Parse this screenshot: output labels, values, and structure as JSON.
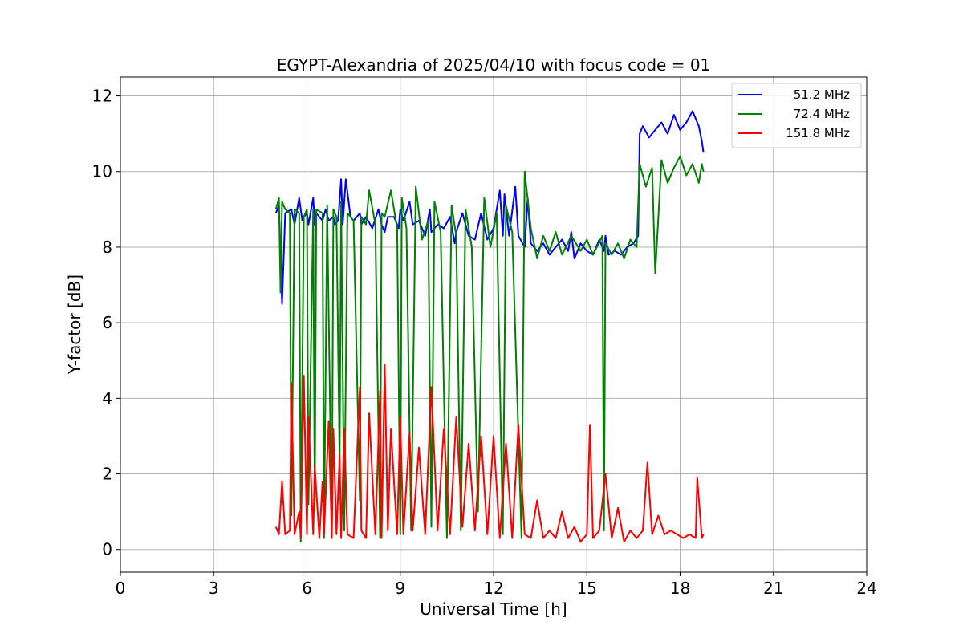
{
  "chart_data": {
    "type": "line",
    "title": "EGYPT-Alexandria of 2025/04/10 with focus code = 01",
    "xlabel": "Universal Time [h]",
    "ylabel": "Y-factor [dB]",
    "xlim": [
      0,
      24
    ],
    "ylim": [
      -0.6,
      12.5
    ],
    "xticks": [
      0,
      3,
      6,
      9,
      12,
      15,
      18,
      21,
      24
    ],
    "yticks": [
      0,
      2,
      4,
      6,
      8,
      10,
      12
    ],
    "grid": true,
    "legend_position": "top-right",
    "series": [
      {
        "name": "51.2 MHz",
        "color": "#0000ff",
        "x": [
          5.0,
          5.1,
          5.2,
          5.3,
          5.5,
          5.6,
          5.75,
          5.85,
          5.9,
          6.0,
          6.05,
          6.2,
          6.25,
          6.3,
          6.5,
          6.6,
          6.7,
          6.85,
          6.9,
          7.0,
          7.1,
          7.15,
          7.25,
          7.4,
          7.5,
          7.7,
          7.75,
          7.9,
          8.1,
          8.3,
          8.4,
          8.5,
          8.6,
          8.8,
          8.95,
          9.0,
          9.1,
          9.3,
          9.4,
          9.6,
          9.8,
          9.95,
          10.0,
          10.2,
          10.4,
          10.6,
          10.75,
          10.8,
          11.0,
          11.2,
          11.4,
          11.6,
          11.8,
          12.0,
          12.2,
          12.3,
          12.35,
          12.5,
          12.7,
          12.8,
          13.0,
          13.1,
          13.2,
          13.3,
          13.4,
          13.6,
          13.8,
          14.0,
          14.2,
          14.4,
          14.5,
          14.6,
          14.8,
          15.0,
          15.2,
          15.4,
          15.55,
          15.6,
          15.7,
          15.9,
          16.1,
          16.3,
          16.5,
          16.65,
          16.7,
          16.8,
          17.0,
          17.2,
          17.4,
          17.6,
          17.8,
          18.0,
          18.2,
          18.4,
          18.6,
          18.7,
          18.75
        ],
        "values": [
          8.9,
          9.1,
          6.5,
          8.9,
          9.0,
          8.6,
          9.3,
          8.7,
          8.8,
          8.9,
          8.6,
          9.3,
          8.6,
          8.9,
          8.7,
          9.0,
          8.7,
          8.8,
          8.6,
          8.7,
          9.8,
          8.6,
          9.8,
          8.8,
          8.7,
          8.9,
          8.6,
          8.8,
          8.5,
          9.0,
          8.6,
          8.4,
          8.8,
          8.8,
          8.5,
          9.0,
          8.7,
          9.2,
          8.6,
          8.7,
          8.3,
          9.0,
          8.4,
          8.6,
          8.5,
          8.8,
          8.1,
          8.4,
          8.9,
          8.3,
          8.2,
          8.9,
          8.2,
          8.5,
          9.5,
          8.3,
          9.4,
          8.3,
          9.6,
          8.3,
          8.0,
          9.3,
          8.1,
          8.0,
          7.9,
          8.1,
          7.8,
          8.0,
          8.2,
          7.9,
          8.4,
          7.7,
          8.1,
          7.9,
          7.8,
          8.2,
          7.9,
          8.3,
          7.8,
          7.9,
          7.8,
          8.0,
          8.1,
          8.3,
          11.0,
          11.2,
          10.9,
          11.1,
          11.3,
          11.0,
          11.5,
          11.1,
          11.3,
          11.6,
          11.2,
          10.8,
          10.5
        ]
      },
      {
        "name": "72.4 MHz",
        "color": "#008000",
        "x": [
          5.0,
          5.1,
          5.15,
          5.2,
          5.3,
          5.45,
          5.5,
          5.6,
          5.75,
          5.8,
          5.9,
          6.0,
          6.05,
          6.2,
          6.25,
          6.3,
          6.5,
          6.55,
          6.65,
          6.8,
          6.85,
          6.95,
          7.05,
          7.1,
          7.2,
          7.3,
          7.5,
          7.7,
          7.75,
          7.9,
          8.0,
          8.2,
          8.35,
          8.4,
          8.5,
          8.7,
          8.9,
          9.0,
          9.05,
          9.2,
          9.35,
          9.5,
          9.7,
          9.9,
          10.0,
          10.1,
          10.3,
          10.5,
          10.65,
          10.8,
          10.95,
          11.1,
          11.3,
          11.5,
          11.7,
          11.9,
          12.1,
          12.3,
          12.4,
          12.6,
          12.9,
          13.0,
          13.2,
          13.4,
          13.6,
          13.8,
          14.0,
          14.2,
          14.5,
          14.8,
          15.0,
          15.2,
          15.5,
          15.55,
          15.6,
          15.8,
          16.0,
          16.2,
          16.4,
          16.6,
          16.7,
          16.9,
          17.1,
          17.2,
          17.4,
          17.6,
          17.8,
          18.0,
          18.2,
          18.4,
          18.6,
          18.7,
          18.75
        ],
        "values": [
          9.0,
          9.3,
          6.8,
          9.2,
          9.0,
          8.9,
          0.9,
          9.0,
          8.9,
          0.2,
          8.8,
          9.0,
          1.2,
          9.0,
          1.0,
          9.0,
          8.9,
          0.3,
          9.1,
          0.4,
          9.0,
          8.8,
          2.2,
          9.2,
          0.5,
          8.9,
          8.7,
          1.3,
          8.8,
          8.6,
          9.5,
          8.6,
          0.3,
          8.9,
          8.8,
          9.5,
          8.5,
          0.4,
          9.3,
          8.5,
          0.5,
          9.6,
          8.2,
          8.7,
          0.6,
          9.2,
          8.4,
          0.3,
          9.1,
          8.3,
          0.5,
          9.0,
          8.0,
          1.0,
          9.3,
          8.0,
          8.9,
          0.4,
          9.1,
          8.4,
          0.3,
          10.0,
          8.5,
          7.7,
          8.3,
          7.9,
          8.4,
          7.8,
          8.3,
          7.9,
          8.2,
          7.8,
          8.3,
          0.5,
          8.1,
          7.8,
          8.1,
          7.7,
          8.2,
          8.0,
          10.2,
          9.6,
          10.1,
          7.3,
          10.3,
          9.7,
          10.1,
          10.4,
          9.9,
          10.2,
          9.7,
          10.2,
          10.0
        ]
      },
      {
        "name": "151.8 MHz",
        "color": "#ff0000",
        "x": [
          5.0,
          5.1,
          5.2,
          5.3,
          5.45,
          5.5,
          5.6,
          5.75,
          5.8,
          5.9,
          6.0,
          6.05,
          6.2,
          6.25,
          6.4,
          6.5,
          6.55,
          6.7,
          6.8,
          6.85,
          6.95,
          7.05,
          7.1,
          7.2,
          7.3,
          7.5,
          7.7,
          7.75,
          7.9,
          8.0,
          8.2,
          8.35,
          8.4,
          8.5,
          8.6,
          8.7,
          8.9,
          9.0,
          9.1,
          9.3,
          9.4,
          9.6,
          9.8,
          10.0,
          10.2,
          10.4,
          10.6,
          10.8,
          11.0,
          11.2,
          11.4,
          11.6,
          11.8,
          12.0,
          12.2,
          12.4,
          12.6,
          12.8,
          13.0,
          13.2,
          13.4,
          13.6,
          13.8,
          14.0,
          14.2,
          14.4,
          14.6,
          14.8,
          15.0,
          15.1,
          15.2,
          15.4,
          15.6,
          15.8,
          16.0,
          16.2,
          16.4,
          16.6,
          16.8,
          16.95,
          17.1,
          17.3,
          17.5,
          17.7,
          17.9,
          18.1,
          18.3,
          18.5,
          18.55,
          18.7,
          18.75
        ],
        "values": [
          0.6,
          0.4,
          1.8,
          0.4,
          0.5,
          4.4,
          0.4,
          1.0,
          0.3,
          4.6,
          0.4,
          3.5,
          0.4,
          2.2,
          0.3,
          1.8,
          0.4,
          3.4,
          0.3,
          3.2,
          0.4,
          2.5,
          0.3,
          3.2,
          0.4,
          0.3,
          4.3,
          0.5,
          0.3,
          3.6,
          0.4,
          4.2,
          0.3,
          4.9,
          0.5,
          3.2,
          0.4,
          3.5,
          0.4,
          3.1,
          0.5,
          2.7,
          0.4,
          4.3,
          0.5,
          3.2,
          0.4,
          3.5,
          0.6,
          2.8,
          0.5,
          3.0,
          0.4,
          3.0,
          0.3,
          2.8,
          0.3,
          3.3,
          0.4,
          0.3,
          1.3,
          0.3,
          0.5,
          0.3,
          1.0,
          0.3,
          0.6,
          0.2,
          0.4,
          3.3,
          0.3,
          0.5,
          2.0,
          0.3,
          1.1,
          0.2,
          0.5,
          0.3,
          0.5,
          2.3,
          0.4,
          0.9,
          0.4,
          0.5,
          0.4,
          0.3,
          0.4,
          0.3,
          1.9,
          0.3,
          0.4
        ]
      }
    ]
  }
}
